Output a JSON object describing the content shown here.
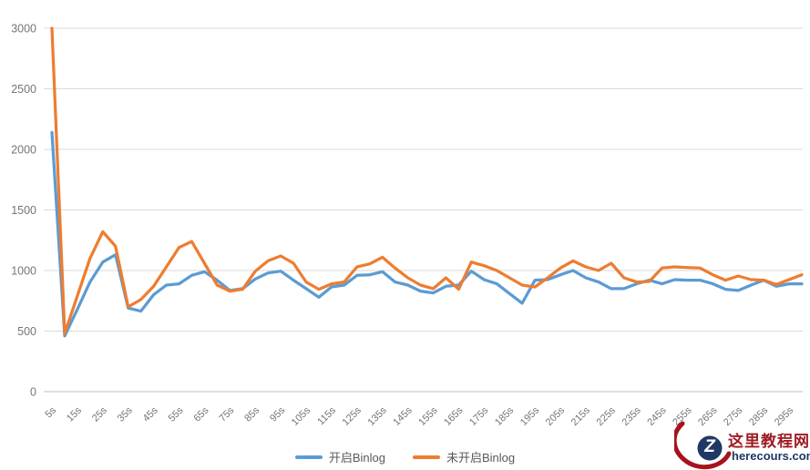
{
  "chart_data": {
    "type": "line",
    "title": "",
    "xlabel": "",
    "ylabel": "",
    "grid": "horizontal",
    "legend_position": "bottom",
    "x_unit": "seconds",
    "x": [
      5,
      10,
      15,
      20,
      25,
      30,
      35,
      40,
      45,
      50,
      55,
      60,
      65,
      70,
      75,
      80,
      85,
      90,
      95,
      100,
      105,
      110,
      115,
      120,
      125,
      130,
      135,
      140,
      145,
      150,
      155,
      160,
      165,
      170,
      175,
      180,
      185,
      190,
      195,
      200,
      205,
      210,
      215,
      220,
      225,
      230,
      235,
      240,
      245,
      250,
      255,
      260,
      265,
      270,
      275,
      280,
      285,
      290,
      295,
      300
    ],
    "x_tick_labels": [
      "5s",
      "15s",
      "25s",
      "35s",
      "45s",
      "55s",
      "65s",
      "75s",
      "85s",
      "95s",
      "105s",
      "115s",
      "125s",
      "135s",
      "145s",
      "155s",
      "165s",
      "175s",
      "185s",
      "195s",
      "205s",
      "215s",
      "225s",
      "235s",
      "245s",
      "255s",
      "265s",
      "275s",
      "285s",
      "295s"
    ],
    "y_axis": {
      "min": 0,
      "max": 3000,
      "step": 500,
      "tick_labels": [
        "0",
        "500",
        "1000",
        "1500",
        "2000",
        "2500",
        "3000"
      ]
    },
    "series": [
      {
        "name": "开启Binlog",
        "color": "#5B9BD5",
        "values": [
          2140,
          460,
          680,
          905,
          1070,
          1130,
          690,
          665,
          800,
          880,
          890,
          960,
          990,
          920,
          835,
          850,
          930,
          980,
          995,
          920,
          850,
          780,
          865,
          880,
          960,
          965,
          990,
          905,
          880,
          830,
          815,
          870,
          880,
          995,
          925,
          890,
          810,
          730,
          920,
          925,
          965,
          1000,
          940,
          905,
          850,
          850,
          890,
          920,
          890,
          925,
          920,
          920,
          890,
          845,
          835,
          880,
          920,
          870,
          890,
          890
        ]
      },
      {
        "name": "未开启Binlog",
        "color": "#ED7D31",
        "values": [
          3000,
          480,
          790,
          1100,
          1320,
          1200,
          700,
          760,
          870,
          1030,
          1190,
          1240,
          1060,
          880,
          830,
          845,
          995,
          1080,
          1120,
          1060,
          905,
          845,
          890,
          905,
          1030,
          1055,
          1110,
          1020,
          940,
          880,
          850,
          940,
          845,
          1070,
          1040,
          1000,
          940,
          880,
          865,
          940,
          1020,
          1080,
          1030,
          1000,
          1060,
          940,
          905,
          910,
          1020,
          1030,
          1025,
          1020,
          965,
          920,
          955,
          925,
          920,
          885,
          925,
          965
        ]
      }
    ]
  },
  "legend": {
    "items": [
      {
        "label": "开启Binlog",
        "color": "#5B9BD5"
      },
      {
        "label": "未开启Binlog",
        "color": "#ED7D31"
      }
    ]
  },
  "watermark": {
    "logo_letter": "Z",
    "site_name": "这里教程网",
    "site_url": "herecours.com",
    "colors": {
      "swoosh": "#A6131C",
      "circle": "#203864",
      "name": "#9E1B23",
      "url": "#1F3864"
    }
  },
  "style": {
    "gridline_color": "#D9D9D9",
    "axis_line_color": "#BFBFBF",
    "axis_text_color": "#757575",
    "background": "#FFFFFF"
  }
}
